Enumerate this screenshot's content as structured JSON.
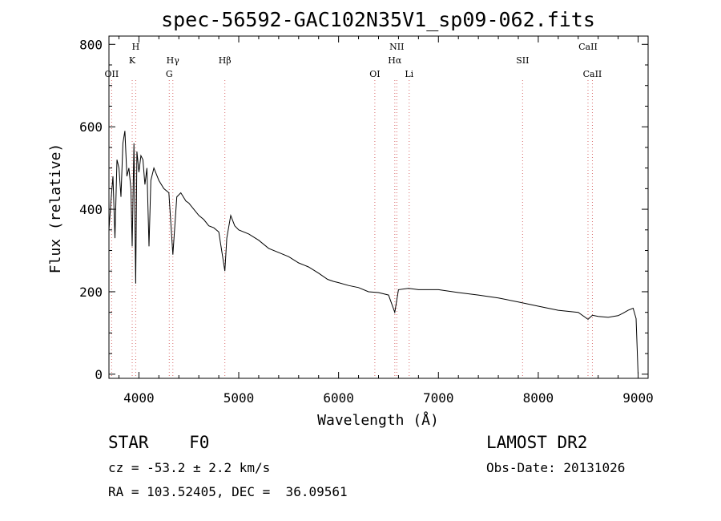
{
  "title": "spec-56592-GAC102N35V1_sp09-062.fits",
  "chart_data": {
    "type": "line",
    "title": "spec-56592-GAC102N35V1_sp09-062.fits",
    "xlabel": "Wavelength (Å)",
    "ylabel": "Flux (relative)",
    "xlim": [
      3700,
      9100
    ],
    "ylim": [
      -10,
      820
    ],
    "x_ticks": [
      4000,
      5000,
      6000,
      7000,
      8000,
      9000
    ],
    "y_ticks": [
      0,
      200,
      400,
      600,
      800
    ],
    "grid": false,
    "series": [
      {
        "name": "",
        "x": [
          3700,
          3720,
          3740,
          3760,
          3780,
          3800,
          3820,
          3840,
          3860,
          3880,
          3900,
          3920,
          3933,
          3950,
          3968,
          3980,
          4000,
          4020,
          4040,
          4060,
          4080,
          4101,
          4120,
          4150,
          4200,
          4250,
          4300,
          4340,
          4380,
          4420,
          4470,
          4500,
          4550,
          4600,
          4650,
          4700,
          4750,
          4800,
          4861,
          4880,
          4920,
          4960,
          5000,
          5100,
          5200,
          5300,
          5400,
          5500,
          5600,
          5700,
          5800,
          5890,
          5950,
          6000,
          6100,
          6200,
          6300,
          6400,
          6500,
          6563,
          6600,
          6700,
          6800,
          6900,
          7000,
          7200,
          7400,
          7600,
          7800,
          8000,
          8200,
          8400,
          8498,
          8542,
          8600,
          8700,
          8800,
          8850,
          8900,
          8950,
          8980,
          9000
        ],
        "y": [
          350,
          420,
          480,
          330,
          520,
          500,
          430,
          560,
          590,
          480,
          500,
          450,
          310,
          560,
          220,
          540,
          490,
          530,
          520,
          460,
          500,
          310,
          470,
          500,
          470,
          450,
          440,
          290,
          430,
          440,
          420,
          415,
          400,
          385,
          375,
          360,
          355,
          345,
          250,
          330,
          385,
          360,
          350,
          340,
          325,
          305,
          295,
          285,
          270,
          260,
          245,
          230,
          225,
          222,
          215,
          210,
          200,
          198,
          192,
          150,
          205,
          208,
          205,
          205,
          205,
          198,
          192,
          185,
          175,
          165,
          155,
          150,
          133,
          143,
          140,
          138,
          142,
          148,
          155,
          160,
          135,
          0
        ]
      }
    ],
    "annotations": {
      "row1": [
        {
          "label": "H",
          "x": 3968
        },
        {
          "label": "NII",
          "x": 6583
        },
        {
          "label": "CaII",
          "x": 8498
        }
      ],
      "row2": [
        {
          "label": "K",
          "x": 3933
        },
        {
          "label": "Hγ",
          "x": 4340
        },
        {
          "label": "Hβ",
          "x": 4861
        },
        {
          "label": "Hα",
          "x": 6563
        },
        {
          "label": "SII",
          "x": 7843
        }
      ],
      "row3": [
        {
          "label": "OII",
          "x": 3727
        },
        {
          "label": "G",
          "x": 4304
        },
        {
          "label": "OI",
          "x": 6363
        },
        {
          "label": "Li",
          "x": 6707
        },
        {
          "label": "CaII",
          "x": 8542
        }
      ],
      "line_positions": [
        3727,
        3933,
        3968,
        4304,
        4340,
        4861,
        6363,
        6563,
        6583,
        6707,
        7843,
        8498,
        8542
      ]
    }
  },
  "info": {
    "class": "STAR    F0",
    "cz": "cz = -53.2 ± 2.2 km/s",
    "radec": "RA = 103.52405, DEC =  36.09561",
    "survey": "LAMOST DR2",
    "obsdate": "Obs-Date: 20131026"
  }
}
